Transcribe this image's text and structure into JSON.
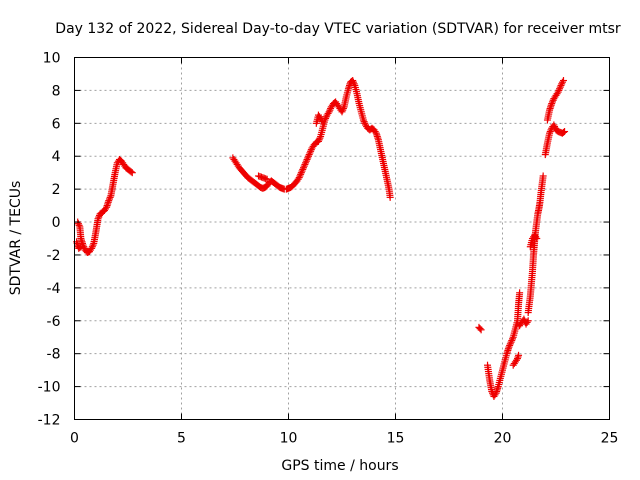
{
  "chart_data": {
    "type": "scatter",
    "title": "Day 132 of 2022, Sidereal Day-to-day VTEC variation (SDTVAR) for receiver mtsr",
    "xlabel": "GPS time / hours",
    "ylabel": "SDTVAR / TECUs",
    "xlim": [
      0,
      25
    ],
    "ylim": [
      -12,
      10
    ],
    "xticks": [
      0,
      5,
      10,
      15,
      20,
      25
    ],
    "yticks": [
      -12,
      -10,
      -8,
      -6,
      -4,
      -2,
      0,
      2,
      4,
      6,
      8,
      10
    ],
    "grid": true,
    "marker": "+",
    "color": "#ee0000",
    "series": [
      {
        "name": "SDTVAR",
        "segments": [
          [
            [
              0.15,
              0.0
            ],
            [
              0.25,
              -0.3
            ],
            [
              0.3,
              -1.0
            ],
            [
              0.4,
              -1.4
            ],
            [
              0.5,
              -1.7
            ],
            [
              0.6,
              -1.85
            ],
            [
              0.7,
              -1.8
            ],
            [
              0.8,
              -1.6
            ],
            [
              0.9,
              -1.3
            ],
            [
              1.0,
              -0.6
            ],
            [
              1.1,
              0.2
            ],
            [
              1.2,
              0.5
            ],
            [
              1.3,
              0.6
            ],
            [
              1.4,
              0.7
            ],
            [
              1.5,
              0.9
            ],
            [
              1.6,
              1.3
            ],
            [
              1.7,
              1.6
            ],
            [
              1.8,
              2.3
            ],
            [
              1.9,
              3.0
            ],
            [
              2.0,
              3.6
            ],
            [
              2.1,
              3.8
            ],
            [
              2.2,
              3.7
            ],
            [
              2.3,
              3.5
            ],
            [
              2.4,
              3.3
            ],
            [
              2.5,
              3.2
            ],
            [
              2.6,
              3.1
            ],
            [
              2.7,
              3.0
            ]
          ],
          [
            [
              0.1,
              -1.2
            ],
            [
              0.2,
              -1.6
            ],
            [
              0.3,
              -1.5
            ]
          ],
          [
            [
              7.4,
              3.9
            ],
            [
              7.5,
              3.7
            ],
            [
              7.6,
              3.5
            ],
            [
              7.7,
              3.3
            ],
            [
              7.8,
              3.15
            ],
            [
              7.9,
              3.0
            ],
            [
              8.0,
              2.85
            ],
            [
              8.1,
              2.7
            ],
            [
              8.2,
              2.6
            ],
            [
              8.3,
              2.5
            ],
            [
              8.4,
              2.4
            ],
            [
              8.5,
              2.3
            ],
            [
              8.6,
              2.2
            ],
            [
              8.7,
              2.1
            ],
            [
              8.8,
              2.05
            ],
            [
              8.9,
              2.1
            ],
            [
              9.0,
              2.2
            ],
            [
              9.1,
              2.4
            ],
            [
              9.2,
              2.5
            ],
            [
              9.3,
              2.4
            ],
            [
              9.4,
              2.3
            ],
            [
              9.5,
              2.2
            ],
            [
              9.6,
              2.1
            ],
            [
              9.7,
              2.05
            ],
            [
              9.8,
              2.0
            ],
            [
              9.9,
              2.0
            ],
            [
              10.0,
              2.05
            ],
            [
              10.1,
              2.1
            ],
            [
              10.2,
              2.2
            ],
            [
              10.3,
              2.35
            ],
            [
              10.4,
              2.5
            ],
            [
              10.5,
              2.7
            ],
            [
              10.6,
              3.0
            ],
            [
              10.7,
              3.3
            ],
            [
              10.8,
              3.6
            ],
            [
              10.9,
              3.9
            ],
            [
              11.0,
              4.2
            ],
            [
              11.1,
              4.5
            ],
            [
              11.2,
              4.7
            ],
            [
              11.3,
              4.85
            ],
            [
              11.4,
              4.9
            ],
            [
              11.5,
              5.2
            ],
            [
              11.6,
              5.7
            ],
            [
              11.7,
              6.2
            ],
            [
              11.8,
              6.5
            ],
            [
              11.9,
              6.7
            ],
            [
              12.0,
              7.0
            ],
            [
              12.1,
              7.2
            ],
            [
              12.2,
              7.3
            ],
            [
              12.3,
              7.1
            ],
            [
              12.4,
              6.9
            ],
            [
              12.5,
              6.7
            ],
            [
              12.6,
              7.0
            ],
            [
              12.7,
              7.6
            ],
            [
              12.8,
              8.1
            ],
            [
              12.9,
              8.5
            ],
            [
              13.0,
              8.6
            ],
            [
              13.1,
              8.3
            ],
            [
              13.2,
              7.8
            ],
            [
              13.3,
              7.2
            ],
            [
              13.4,
              6.7
            ],
            [
              13.5,
              6.2
            ],
            [
              13.6,
              5.9
            ],
            [
              13.7,
              5.7
            ],
            [
              13.8,
              5.6
            ],
            [
              13.9,
              5.7
            ],
            [
              14.0,
              5.6
            ],
            [
              14.1,
              5.4
            ],
            [
              14.2,
              5.0
            ],
            [
              14.3,
              4.4
            ],
            [
              14.4,
              3.8
            ],
            [
              14.5,
              3.2
            ],
            [
              14.6,
              2.6
            ],
            [
              14.7,
              2.0
            ],
            [
              14.75,
              1.5
            ]
          ],
          [
            [
              8.6,
              2.8
            ],
            [
              8.8,
              2.7
            ],
            [
              9.0,
              2.6
            ]
          ],
          [
            [
              11.3,
              6.0
            ],
            [
              11.4,
              6.5
            ],
            [
              11.5,
              6.3
            ],
            [
              11.6,
              6.1
            ]
          ],
          [
            [
              18.9,
              -6.4
            ],
            [
              19.0,
              -6.55
            ]
          ],
          [
            [
              19.3,
              -8.7
            ],
            [
              19.4,
              -9.6
            ],
            [
              19.5,
              -10.3
            ],
            [
              19.6,
              -10.6
            ],
            [
              19.7,
              -10.4
            ],
            [
              19.8,
              -10.0
            ],
            [
              19.9,
              -9.5
            ],
            [
              20.0,
              -9.0
            ],
            [
              20.1,
              -8.5
            ],
            [
              20.2,
              -8.0
            ],
            [
              20.3,
              -7.6
            ],
            [
              20.4,
              -7.3
            ],
            [
              20.5,
              -7.0
            ],
            [
              20.6,
              -6.5
            ],
            [
              20.7,
              -6.0
            ],
            [
              20.75,
              -5.0
            ],
            [
              20.8,
              -4.3
            ]
          ],
          [
            [
              20.5,
              -8.7
            ],
            [
              20.6,
              -8.5
            ],
            [
              20.7,
              -8.3
            ],
            [
              20.75,
              -8.1
            ]
          ],
          [
            [
              20.8,
              -6.3
            ],
            [
              20.9,
              -6.1
            ],
            [
              21.0,
              -5.9
            ],
            [
              21.1,
              -6.2
            ],
            [
              21.2,
              -6.0
            ]
          ],
          [
            [
              21.2,
              -5.5
            ],
            [
              21.3,
              -4.5
            ],
            [
              21.4,
              -3.0
            ],
            [
              21.45,
              -2.0
            ],
            [
              21.5,
              -1.2
            ],
            [
              21.55,
              -0.5
            ],
            [
              21.6,
              0.0
            ],
            [
              21.65,
              0.5
            ],
            [
              21.7,
              0.8
            ],
            [
              21.75,
              1.2
            ],
            [
              21.8,
              1.8
            ],
            [
              21.85,
              2.3
            ],
            [
              21.9,
              2.8
            ]
          ],
          [
            [
              21.3,
              -1.5
            ],
            [
              21.4,
              -1.0
            ],
            [
              21.5,
              -0.8
            ],
            [
              21.6,
              -1.0
            ]
          ],
          [
            [
              22.0,
              4.1
            ],
            [
              22.1,
              4.8
            ],
            [
              22.2,
              5.4
            ],
            [
              22.3,
              5.7
            ],
            [
              22.4,
              5.9
            ],
            [
              22.5,
              5.6
            ],
            [
              22.6,
              5.5
            ],
            [
              22.7,
              5.45
            ],
            [
              22.8,
              5.4
            ],
            [
              22.9,
              5.5
            ]
          ],
          [
            [
              22.1,
              6.2
            ],
            [
              22.2,
              6.8
            ],
            [
              22.3,
              7.2
            ],
            [
              22.4,
              7.5
            ],
            [
              22.5,
              7.7
            ],
            [
              22.6,
              7.9
            ],
            [
              22.7,
              8.2
            ],
            [
              22.8,
              8.5
            ],
            [
              22.85,
              8.6
            ]
          ]
        ]
      }
    ]
  }
}
